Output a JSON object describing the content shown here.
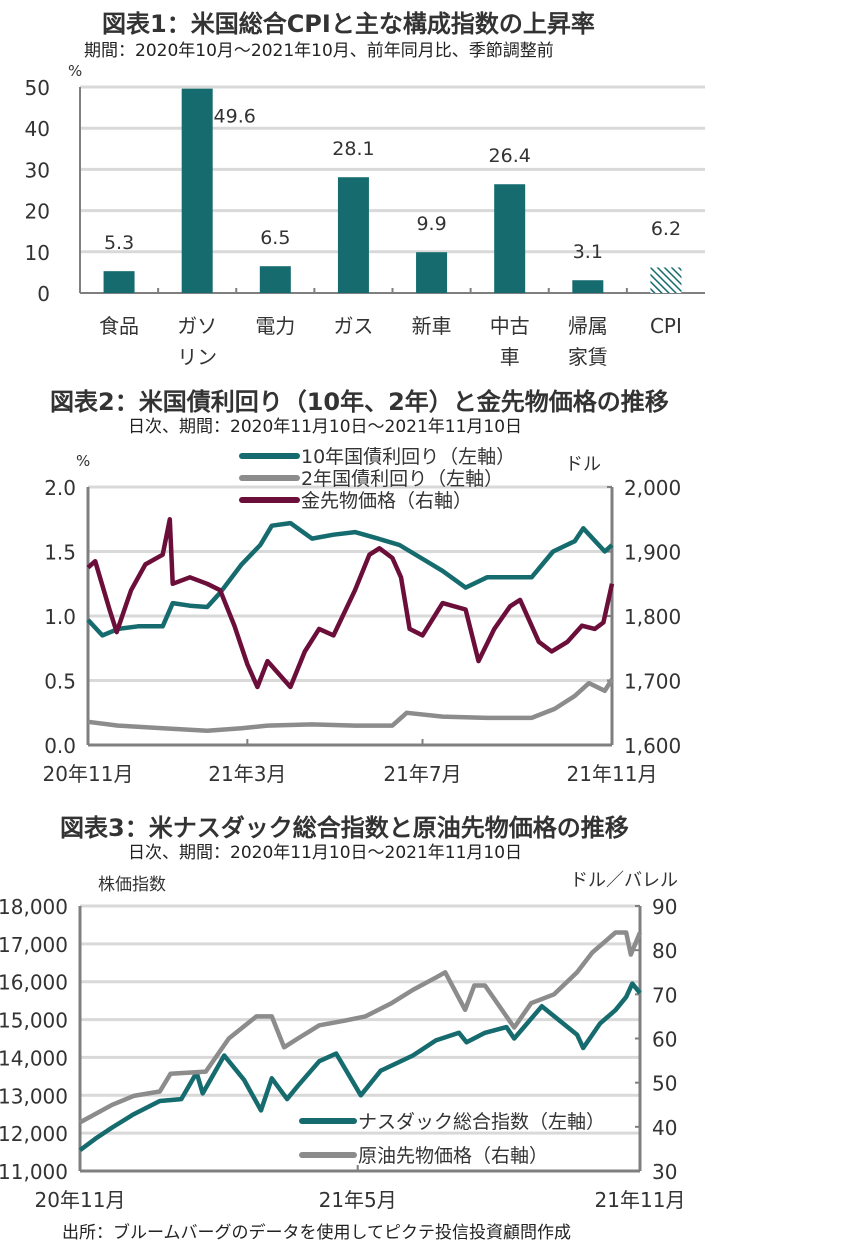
{
  "colors": {
    "teal": "#156b6e",
    "gray": "#8c8c8c",
    "maroon": "#6b0f3a",
    "grid": "#d9d9d9",
    "axis": "#7f7f7f"
  },
  "footer": "出所：ブルームバーグのデータを使用してピクテ投信投資顧問作成",
  "chart_data": [
    {
      "type": "bar",
      "title": "図表1：米国総合CPIと主な構成指数の上昇率",
      "subtitle": "期間：2020年10月～2021年10月、前年同月比、季節調整前",
      "ylabel": "%",
      "ylim": [
        0,
        50
      ],
      "yticks": [
        "0",
        "10",
        "20",
        "30",
        "40",
        "50"
      ],
      "grid": true,
      "categories": [
        [
          "食品"
        ],
        [
          "ガソ",
          "リン"
        ],
        [
          "電力"
        ],
        [
          "ガス"
        ],
        [
          "新車"
        ],
        [
          "中古",
          "車"
        ],
        [
          "帰属",
          "家賃"
        ],
        [
          "CPI"
        ]
      ],
      "values": [
        5.3,
        49.6,
        6.5,
        28.1,
        9.9,
        26.4,
        3.1,
        6.2
      ],
      "labels": [
        "5.3",
        "49.6",
        "6.5",
        "28.1",
        "9.9",
        "26.4",
        "3.1",
        "6.2"
      ],
      "hatched": [
        false,
        false,
        false,
        false,
        false,
        false,
        false,
        true
      ]
    },
    {
      "type": "line",
      "title": "図表2：米国債利回り（10年、2年）と金先物価格の推移",
      "subtitle": "日次、期間：2020年11月10日～2021年11月10日",
      "ylabel_left": "%",
      "ylabel_right": "ドル",
      "ylim_left": [
        0,
        2.0
      ],
      "ylim_right": [
        1600,
        2000
      ],
      "yticks_left": [
        "0.0",
        "0.5",
        "1.0",
        "1.5",
        "2.0"
      ],
      "yticks_right": [
        "1,600",
        "1,700",
        "1,800",
        "1,900",
        "2,000"
      ],
      "xlim": [
        "2020-11-10",
        "2021-11-10"
      ],
      "xticks": [
        {
          "date": "2020-11-10",
          "label": "20年11月"
        },
        {
          "date": "2021-03-01",
          "label": "21年3月"
        },
        {
          "date": "2021-07-01",
          "label": "21年7月"
        },
        {
          "date": "2021-11-10",
          "label": "21年11月"
        }
      ],
      "legend": "top-center",
      "series": [
        {
          "name": "10年国債利回り（左軸）",
          "axis": "left",
          "color": "#156b6e",
          "points": [
            [
              "2020-11-10",
              0.97
            ],
            [
              "2020-11-20",
              0.85
            ],
            [
              "2020-12-01",
              0.9
            ],
            [
              "2020-12-15",
              0.92
            ],
            [
              "2021-01-01",
              0.92
            ],
            [
              "2021-01-08",
              1.1
            ],
            [
              "2021-01-20",
              1.08
            ],
            [
              "2021-02-01",
              1.07
            ],
            [
              "2021-02-10",
              1.18
            ],
            [
              "2021-02-25",
              1.4
            ],
            [
              "2021-03-10",
              1.55
            ],
            [
              "2021-03-18",
              1.7
            ],
            [
              "2021-03-31",
              1.72
            ],
            [
              "2021-04-15",
              1.6
            ],
            [
              "2021-04-30",
              1.63
            ],
            [
              "2021-05-15",
              1.65
            ],
            [
              "2021-05-31",
              1.6
            ],
            [
              "2021-06-15",
              1.55
            ],
            [
              "2021-06-30",
              1.45
            ],
            [
              "2021-07-15",
              1.35
            ],
            [
              "2021-07-31",
              1.22
            ],
            [
              "2021-08-15",
              1.3
            ],
            [
              "2021-08-31",
              1.3
            ],
            [
              "2021-09-15",
              1.3
            ],
            [
              "2021-09-30",
              1.5
            ],
            [
              "2021-10-15",
              1.58
            ],
            [
              "2021-10-21",
              1.68
            ],
            [
              "2021-11-05",
              1.5
            ],
            [
              "2021-11-10",
              1.55
            ]
          ]
        },
        {
          "name": "2年国債利回り（左軸）",
          "axis": "left",
          "color": "#8c8c8c",
          "points": [
            [
              "2020-11-10",
              0.18
            ],
            [
              "2020-12-01",
              0.15
            ],
            [
              "2021-01-01",
              0.13
            ],
            [
              "2021-02-01",
              0.11
            ],
            [
              "2021-02-25",
              0.13
            ],
            [
              "2021-03-15",
              0.15
            ],
            [
              "2021-04-15",
              0.16
            ],
            [
              "2021-05-15",
              0.15
            ],
            [
              "2021-06-10",
              0.15
            ],
            [
              "2021-06-20",
              0.25
            ],
            [
              "2021-07-15",
              0.22
            ],
            [
              "2021-08-15",
              0.21
            ],
            [
              "2021-09-15",
              0.21
            ],
            [
              "2021-10-01",
              0.28
            ],
            [
              "2021-10-15",
              0.38
            ],
            [
              "2021-10-25",
              0.48
            ],
            [
              "2021-11-05",
              0.42
            ],
            [
              "2021-11-10",
              0.51
            ]
          ]
        },
        {
          "name": "金先物価格（右軸）",
          "axis": "right",
          "color": "#6b0f3a",
          "points": [
            [
              "2020-11-10",
              1875
            ],
            [
              "2020-11-15",
              1885
            ],
            [
              "2020-11-25",
              1810
            ],
            [
              "2020-11-30",
              1775
            ],
            [
              "2020-12-10",
              1840
            ],
            [
              "2020-12-20",
              1880
            ],
            [
              "2021-01-01",
              1895
            ],
            [
              "2021-01-06",
              1950
            ],
            [
              "2021-01-08",
              1850
            ],
            [
              "2021-01-20",
              1860
            ],
            [
              "2021-02-01",
              1850
            ],
            [
              "2021-02-10",
              1840
            ],
            [
              "2021-02-20",
              1785
            ],
            [
              "2021-03-01",
              1725
            ],
            [
              "2021-03-08",
              1690
            ],
            [
              "2021-03-15",
              1730
            ],
            [
              "2021-03-31",
              1690
            ],
            [
              "2021-04-10",
              1745
            ],
            [
              "2021-04-20",
              1780
            ],
            [
              "2021-04-30",
              1770
            ],
            [
              "2021-05-15",
              1840
            ],
            [
              "2021-05-25",
              1895
            ],
            [
              "2021-06-01",
              1905
            ],
            [
              "2021-06-10",
              1890
            ],
            [
              "2021-06-16",
              1860
            ],
            [
              "2021-06-22",
              1780
            ],
            [
              "2021-07-01",
              1770
            ],
            [
              "2021-07-15",
              1820
            ],
            [
              "2021-07-31",
              1810
            ],
            [
              "2021-08-09",
              1730
            ],
            [
              "2021-08-20",
              1780
            ],
            [
              "2021-08-31",
              1815
            ],
            [
              "2021-09-07",
              1825
            ],
            [
              "2021-09-20",
              1760
            ],
            [
              "2021-09-29",
              1745
            ],
            [
              "2021-10-10",
              1760
            ],
            [
              "2021-10-20",
              1785
            ],
            [
              "2021-10-29",
              1780
            ],
            [
              "2021-11-04",
              1790
            ],
            [
              "2021-11-10",
              1850
            ]
          ]
        }
      ]
    },
    {
      "type": "line",
      "title": "図表3：米ナスダック総合指数と原油先物価格の推移",
      "subtitle": "日次、期間：2020年11月10日～2021年11月10日",
      "ylabel_left": "株価指数",
      "ylabel_right": "ドル／バレル",
      "ylim_left": [
        11000,
        18000
      ],
      "ylim_right": [
        30,
        90
      ],
      "yticks_left": [
        "11,000",
        "12,000",
        "13,000",
        "14,000",
        "15,000",
        "16,000",
        "17,000",
        "18,000"
      ],
      "yticks_right": [
        "30",
        "40",
        "50",
        "60",
        "70",
        "80",
        "90"
      ],
      "xlim": [
        "2020-11-10",
        "2021-11-10"
      ],
      "xticks": [
        {
          "date": "2020-11-10",
          "label": "20年11月"
        },
        {
          "date": "2021-05-10",
          "label": "21年5月"
        },
        {
          "date": "2021-11-10",
          "label": "21年11月"
        }
      ],
      "legend": "bottom-right",
      "series": [
        {
          "name": "ナスダック総合指数（左軸）",
          "axis": "left",
          "color": "#156b6e",
          "points": [
            [
              "2020-11-10",
              11550
            ],
            [
              "2020-11-20",
              11850
            ],
            [
              "2020-12-01",
              12150
            ],
            [
              "2020-12-15",
              12500
            ],
            [
              "2021-01-01",
              12850
            ],
            [
              "2021-01-15",
              12900
            ],
            [
              "2021-01-25",
              13600
            ],
            [
              "2021-01-29",
              13050
            ],
            [
              "2021-02-12",
              14050
            ],
            [
              "2021-02-25",
              13400
            ],
            [
              "2021-03-08",
              12600
            ],
            [
              "2021-03-15",
              13450
            ],
            [
              "2021-03-25",
              12900
            ],
            [
              "2021-04-01",
              13250
            ],
            [
              "2021-04-15",
              13900
            ],
            [
              "2021-04-26",
              14100
            ],
            [
              "2021-05-12",
              13000
            ],
            [
              "2021-05-25",
              13650
            ],
            [
              "2021-06-15",
              14050
            ],
            [
              "2021-06-30",
              14450
            ],
            [
              "2021-07-15",
              14650
            ],
            [
              "2021-07-20",
              14400
            ],
            [
              "2021-08-01",
              14650
            ],
            [
              "2021-08-15",
              14800
            ],
            [
              "2021-08-20",
              14500
            ],
            [
              "2021-09-07",
              15350
            ],
            [
              "2021-09-30",
              14600
            ],
            [
              "2021-10-04",
              14250
            ],
            [
              "2021-10-15",
              14900
            ],
            [
              "2021-10-25",
              15250
            ],
            [
              "2021-11-01",
              15600
            ],
            [
              "2021-11-05",
              15950
            ],
            [
              "2021-11-10",
              15700
            ]
          ]
        },
        {
          "name": "原油先物価格（右軸）",
          "axis": "right",
          "color": "#8c8c8c",
          "points": [
            [
              "2020-11-10",
              41
            ],
            [
              "2020-12-01",
              45
            ],
            [
              "2020-12-15",
              47
            ],
            [
              "2021-01-01",
              48
            ],
            [
              "2021-01-08",
              52
            ],
            [
              "2021-01-31",
              52.5
            ],
            [
              "2021-02-15",
              60
            ],
            [
              "2021-03-05",
              65
            ],
            [
              "2021-03-15",
              65
            ],
            [
              "2021-03-23",
              58
            ],
            [
              "2021-04-01",
              60
            ],
            [
              "2021-04-15",
              63
            ],
            [
              "2021-05-01",
              64
            ],
            [
              "2021-05-15",
              65
            ],
            [
              "2021-06-01",
              68
            ],
            [
              "2021-06-15",
              71
            ],
            [
              "2021-07-01",
              74
            ],
            [
              "2021-07-06",
              75
            ],
            [
              "2021-07-19",
              66.5
            ],
            [
              "2021-07-25",
              72
            ],
            [
              "2021-08-01",
              72
            ],
            [
              "2021-08-20",
              62.5
            ],
            [
              "2021-08-31",
              68
            ],
            [
              "2021-09-15",
              70
            ],
            [
              "2021-09-30",
              75
            ],
            [
              "2021-10-10",
              79.5
            ],
            [
              "2021-10-25",
              84
            ],
            [
              "2021-11-01",
              84
            ],
            [
              "2021-11-04",
              79
            ],
            [
              "2021-11-10",
              84
            ]
          ]
        }
      ]
    }
  ]
}
